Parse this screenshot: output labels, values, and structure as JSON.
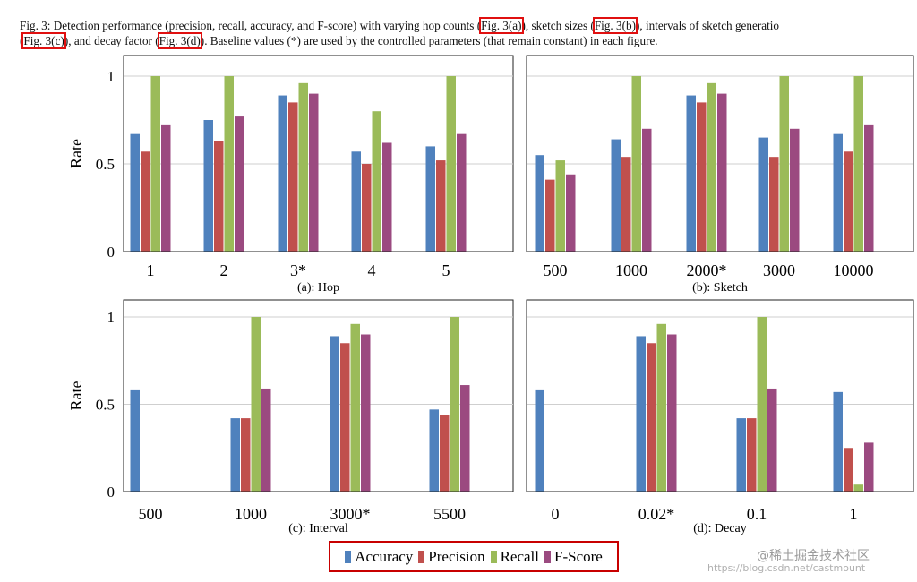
{
  "caption": {
    "p1": "Fig. 3: Detection performance (precision, recall, accuracy, and F-score) with varying hop counts (",
    "ref_a": "Fig. 3(a)",
    "p2": "), sketch sizes (",
    "ref_b": "Fig. 3(b)",
    "p3": "), intervals of sketch generatio",
    "p4": "(",
    "ref_c": "Fig. 3(c)",
    "p5": "), and decay factor (",
    "ref_d": "Fig. 3(d)",
    "p6": "). Baseline values (*) are used by the controlled parameters (that remain constant) in each figure."
  },
  "legend": [
    {
      "name": "Accuracy",
      "color": "#4f81bd"
    },
    {
      "name": "Precision",
      "color": "#c0504d"
    },
    {
      "name": "Recall",
      "color": "#9bbb59"
    },
    {
      "name": "F-Score",
      "color": "#9b4a80"
    }
  ],
  "watermark": {
    "line1": "@稀土掘金技术社区",
    "line2": "https://blog.csdn.net/castmount"
  },
  "chart_data": [
    {
      "type": "bar",
      "title": "(a): Hop",
      "ylabel": "Rate",
      "ylim": [
        0,
        1
      ],
      "yticks": [
        "0",
        "0.5",
        "1"
      ],
      "grid": true,
      "categories": [
        "1",
        "2",
        "3*",
        "4",
        "5"
      ],
      "series": [
        {
          "name": "Accuracy",
          "values": [
            0.67,
            0.75,
            0.89,
            0.57,
            0.6
          ]
        },
        {
          "name": "Precision",
          "values": [
            0.57,
            0.63,
            0.85,
            0.5,
            0.52
          ]
        },
        {
          "name": "Recall",
          "values": [
            1.0,
            1.0,
            0.96,
            0.8,
            1.0
          ]
        },
        {
          "name": "F-Score",
          "values": [
            0.72,
            0.77,
            0.9,
            0.62,
            0.67
          ]
        }
      ]
    },
    {
      "type": "bar",
      "title": "(b): Sketch",
      "ylabel": "",
      "ylim": [
        0,
        1
      ],
      "grid": true,
      "categories": [
        "500",
        "1000",
        "2000*",
        "3000",
        "10000"
      ],
      "series": [
        {
          "name": "Accuracy",
          "values": [
            0.55,
            0.64,
            0.89,
            0.65,
            0.67
          ]
        },
        {
          "name": "Precision",
          "values": [
            0.41,
            0.54,
            0.85,
            0.54,
            0.57
          ]
        },
        {
          "name": "Recall",
          "values": [
            0.52,
            1.0,
            0.96,
            1.0,
            1.0
          ]
        },
        {
          "name": "F-Score",
          "values": [
            0.44,
            0.7,
            0.9,
            0.7,
            0.72
          ]
        }
      ]
    },
    {
      "type": "bar",
      "title": "(c): Interval",
      "ylabel": "Rate",
      "ylim": [
        0,
        1
      ],
      "yticks": [
        "0",
        "0.5",
        "1"
      ],
      "grid": true,
      "categories": [
        "500",
        "1000",
        "3000*",
        "5500"
      ],
      "series": [
        {
          "name": "Accuracy",
          "values": [
            0.58,
            0.42,
            0.89,
            0.47
          ]
        },
        {
          "name": "Precision",
          "values": [
            0,
            0.42,
            0.85,
            0.44
          ]
        },
        {
          "name": "Recall",
          "values": [
            0,
            1.0,
            0.96,
            1.0
          ]
        },
        {
          "name": "F-Score",
          "values": [
            0,
            0.59,
            0.9,
            0.61
          ]
        }
      ]
    },
    {
      "type": "bar",
      "title": "(d): Decay",
      "ylabel": "",
      "ylim": [
        0,
        1
      ],
      "grid": true,
      "categories": [
        "0",
        "0.02*",
        "0.1",
        "1"
      ],
      "series": [
        {
          "name": "Accuracy",
          "values": [
            0.58,
            0.89,
            0.42,
            0.57
          ]
        },
        {
          "name": "Precision",
          "values": [
            0,
            0.85,
            0.42,
            0.25
          ]
        },
        {
          "name": "Recall",
          "values": [
            0,
            0.96,
            1.0,
            0.04
          ]
        },
        {
          "name": "F-Score",
          "values": [
            0,
            0.9,
            0.59,
            0.28
          ]
        }
      ]
    }
  ]
}
